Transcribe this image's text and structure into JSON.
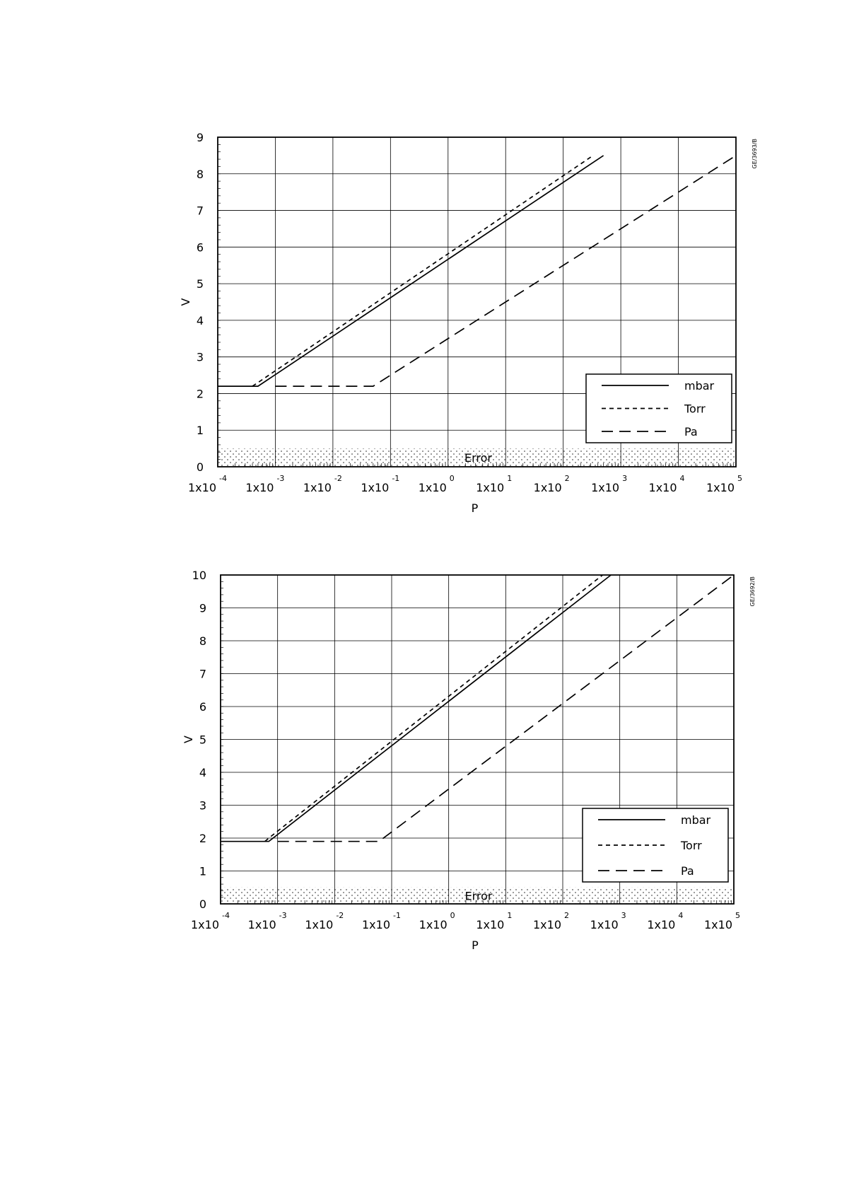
{
  "chart_data": [
    {
      "type": "line",
      "figure_id": "GE/3693/B",
      "xlabel": "P",
      "ylabel": "V",
      "xscale": "log",
      "xlim": [
        0.0001,
        100000
      ],
      "ylim": [
        0,
        9
      ],
      "yticks": [
        "0",
        "1",
        "2",
        "3",
        "4",
        "5",
        "6",
        "7",
        "8",
        "9"
      ],
      "xtick_base": "1x10",
      "xtick_exponents": [
        "-4",
        "-3",
        "-2",
        "-1",
        "0",
        "1",
        "2",
        "3",
        "4",
        "5"
      ],
      "grid": true,
      "legend_position": "bottom-right",
      "error_band": {
        "label": "Error",
        "range": [
          0,
          0.5
        ]
      },
      "series": [
        {
          "name": "mbar",
          "style": "solid",
          "x": [
            0.0001,
            0.0005,
            500
          ],
          "y": [
            2.2,
            2.2,
            8.5
          ]
        },
        {
          "name": "Torr",
          "style": "short-dash",
          "x": [
            0.0004,
            0.0005,
            330
          ],
          "y": [
            2.2,
            2.3,
            8.5
          ]
        },
        {
          "name": "Pa",
          "style": "long-dash",
          "x": [
            0.001,
            0.05,
            100000
          ],
          "y": [
            2.2,
            2.2,
            8.5
          ]
        }
      ]
    },
    {
      "type": "line",
      "figure_id": "GE/3692/B",
      "xlabel": "P",
      "ylabel": "V",
      "xscale": "log",
      "xlim": [
        0.0001,
        100000
      ],
      "ylim": [
        0,
        10
      ],
      "yticks": [
        "0",
        "1",
        "2",
        "3",
        "4",
        "5",
        "6",
        "7",
        "8",
        "9",
        "10"
      ],
      "xtick_base": "1x10",
      "xtick_exponents": [
        "-4",
        "-3",
        "-2",
        "-1",
        "0",
        "1",
        "2",
        "3",
        "4",
        "5"
      ],
      "grid": true,
      "legend_position": "bottom-right",
      "error_band": {
        "label": "Error",
        "range": [
          0,
          0.5
        ]
      },
      "series": [
        {
          "name": "mbar",
          "style": "solid",
          "x": [
            0.0001,
            0.0007,
            700
          ],
          "y": [
            1.9,
            1.9,
            10
          ]
        },
        {
          "name": "Torr",
          "style": "short-dash",
          "x": [
            0.0006,
            0.0007,
            500
          ],
          "y": [
            1.9,
            2.0,
            10
          ]
        },
        {
          "name": "Pa",
          "style": "long-dash",
          "x": [
            0.001,
            0.06,
            100000
          ],
          "y": [
            1.9,
            1.9,
            10
          ]
        }
      ]
    }
  ]
}
